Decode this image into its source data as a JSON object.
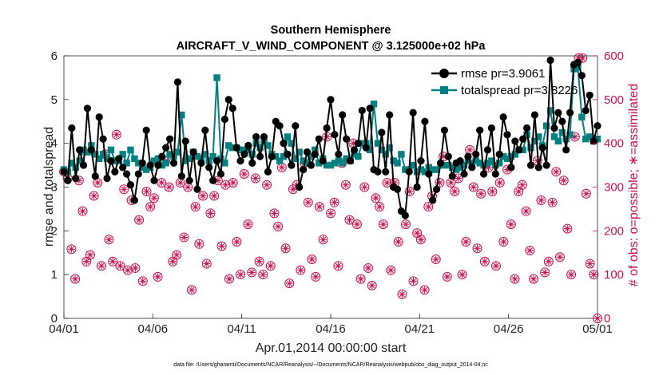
{
  "chart_data": {
    "type": "line",
    "title": "Southern Hemisphere",
    "subtitle": "AIRCRAFT_V_WIND_COMPONENT @ 3.125000e+02 hPa",
    "xlabel": "Apr.01,2014 00:00:00 start",
    "ylabel": "rmse and totalspread",
    "y2label": "# of obs: o=possible; ∗=assimilated",
    "footnote": "data file: /Users/gharamti/Documents/NCAR/Reanalysis/~/Documents/NCAR/Reanalysis/webpub/obs_diag_output_2014-04.nc",
    "x_ticks": [
      "04/01",
      "04/06",
      "04/11",
      "04/16",
      "04/21",
      "04/26",
      "05/01"
    ],
    "y_ticks": [
      "0",
      "1",
      "2",
      "3",
      "4",
      "5",
      "6"
    ],
    "y2_ticks": [
      "0",
      "100",
      "200",
      "300",
      "400",
      "500",
      "600"
    ],
    "ylim": [
      0,
      6
    ],
    "y2lim": [
      0,
      600
    ],
    "xlim_days": [
      0,
      30
    ],
    "legend_position": "top-right",
    "colors": {
      "rmse": "#000000",
      "totalspread": "#008080",
      "obs": "#c8104f"
    },
    "series": [
      {
        "name": "rmse pr=3.9061",
        "axis": "left",
        "values": [
          3.35,
          3.15,
          4.35,
          3.2,
          3.85,
          3.5,
          4.8,
          3.85,
          3.25,
          4.6,
          4.1,
          3.2,
          3.6,
          3.35,
          3.65,
          3.45,
          3.3,
          3.05,
          2.7,
          3.3,
          3.55,
          4.3,
          3.5,
          3.15,
          3.5,
          3.7,
          3.9,
          4.1,
          3.55,
          5.4,
          3.25,
          4.05,
          3.15,
          3.8,
          2.95,
          3.55,
          4.3,
          3.45,
          3.15,
          3.6,
          3.3,
          4.55,
          5.0,
          4.8,
          3.9,
          3.6,
          3.75,
          3.95,
          3.55,
          4.15,
          3.7,
          4.15,
          3.35,
          3.7,
          4.5,
          4.4,
          4.0,
          3.75,
          3.5,
          4.4,
          3.0,
          3.4,
          3.8,
          3.5,
          3.75,
          4.1,
          3.6,
          4.35,
          5.0,
          4.2,
          3.75,
          4.65,
          4.1,
          3.6,
          3.85,
          4.0,
          4.75,
          3.9,
          4.8,
          3.4,
          3.35,
          4.25,
          3.35,
          4.65,
          3.0,
          2.95,
          2.45,
          2.35,
          3.35,
          4.7,
          3.0,
          3.6,
          4.5,
          3.3,
          2.7,
          2.95,
          3.55,
          4.3,
          3.7,
          3.25,
          3.55,
          3.6,
          3.3,
          3.7,
          3.45,
          3.75,
          4.3,
          3.3,
          3.85,
          4.35,
          3.3,
          3.75,
          4.6,
          4.2,
          3.45,
          4.05,
          3.85,
          4.1,
          4.35,
          3.5,
          4.65,
          3.45,
          3.9,
          3.5,
          5.9,
          4.35,
          4.7,
          4.5,
          3.85,
          4.7,
          5.8,
          5.85,
          5.55,
          4.75,
          5.1,
          4.05,
          4.4
        ]
      },
      {
        "name": "totalspread pr=3.8226",
        "axis": "left",
        "values": [
          3.4,
          3.35,
          3.55,
          3.45,
          3.6,
          3.85,
          3.8,
          3.95,
          3.75,
          3.65,
          3.75,
          3.65,
          3.85,
          3.6,
          3.6,
          3.75,
          3.55,
          3.85,
          3.65,
          3.55,
          3.45,
          3.4,
          3.45,
          3.6,
          3.65,
          3.5,
          3.55,
          3.75,
          3.7,
          3.8,
          4.65,
          3.6,
          3.65,
          3.8,
          3.7,
          3.65,
          3.75,
          3.6,
          3.7,
          5.5,
          3.65,
          3.55,
          3.95,
          3.9,
          3.9,
          3.85,
          3.85,
          3.85,
          3.75,
          4.0,
          3.9,
          4.05,
          3.95,
          3.75,
          3.7,
          3.6,
          3.7,
          4.15,
          4.0,
          3.65,
          3.8,
          3.6,
          3.55,
          3.7,
          3.85,
          3.55,
          3.65,
          3.5,
          3.5,
          3.55,
          3.6,
          3.55,
          3.65,
          3.6,
          3.75,
          3.7,
          4.0,
          4.0,
          3.85,
          4.9,
          4.0,
          3.85,
          3.75,
          3.9,
          3.6,
          3.55,
          3.75,
          3.4,
          3.4,
          3.5,
          3.35,
          3.4,
          3.35,
          3.45,
          3.4,
          3.4,
          3.5,
          3.5,
          3.5,
          3.45,
          3.4,
          3.45,
          3.5,
          3.6,
          3.55,
          3.6,
          3.55,
          3.5,
          3.55,
          3.6,
          3.5,
          3.55,
          3.7,
          3.65,
          3.7,
          3.75,
          3.85,
          3.85,
          4.2,
          3.9,
          4.05,
          4.15,
          3.95,
          4.4,
          4.75,
          4.15,
          4.05,
          4.25,
          4.1,
          4.2,
          5.7,
          5.75,
          4.6,
          4.1,
          4.15,
          4.05,
          4.1
        ]
      },
      {
        "name": "obs possible",
        "axis": "right",
        "marker": "o",
        "values": [
          335,
          320,
          158,
          90,
          315,
          245,
          130,
          145,
          280,
          310,
          120,
          375,
          180,
          130,
          420,
          120,
          295,
          110,
          270,
          115,
          225,
          85,
          290,
          255,
          275,
          95,
          310,
          360,
          300,
          130,
          145,
          310,
          185,
          300,
          65,
          255,
          170,
          280,
          125,
          240,
          280,
          315,
          165,
          305,
          90,
          310,
          175,
          100,
          330,
          215,
          105,
          320,
          130,
          100,
          305,
          120,
          240,
          210,
          345,
          160,
          80,
          295,
          305,
          110,
          355,
          265,
          135,
          95,
          255,
          180,
          415,
          240,
          265,
          120,
          355,
          305,
          225,
          400,
          215,
          90,
          300,
          115,
          75,
          275,
          255,
          215,
          310,
          110,
          310,
          175,
          55,
          215,
          290,
          85,
          195,
          180,
          65,
          255,
          280,
          135,
          310,
          370,
          95,
          310,
          290,
          320,
          100,
          175,
          385,
          300,
          160,
          285,
          130,
          345,
          290,
          120,
          310,
          175,
          340,
          215,
          90,
          290,
          305,
          245,
          155,
          90,
          360,
          270,
          105,
          130,
          265,
          335,
          140,
          315,
          205,
          100,
          415,
          595,
          595,
          285,
          125,
          100,
          0
        ]
      },
      {
        "name": "obs assimilated",
        "axis": "right",
        "marker": "*",
        "values": [
          335,
          320,
          158,
          90,
          315,
          245,
          130,
          145,
          280,
          310,
          120,
          375,
          180,
          130,
          420,
          120,
          295,
          110,
          270,
          115,
          225,
          85,
          290,
          255,
          275,
          95,
          310,
          360,
          300,
          130,
          145,
          310,
          185,
          300,
          65,
          255,
          170,
          280,
          125,
          240,
          280,
          315,
          165,
          305,
          90,
          310,
          175,
          100,
          330,
          215,
          105,
          320,
          130,
          100,
          305,
          120,
          240,
          210,
          345,
          160,
          80,
          295,
          305,
          110,
          355,
          265,
          135,
          95,
          255,
          180,
          415,
          240,
          265,
          120,
          355,
          305,
          225,
          400,
          215,
          90,
          300,
          115,
          75,
          275,
          255,
          215,
          310,
          110,
          310,
          175,
          55,
          215,
          290,
          85,
          195,
          180,
          65,
          255,
          280,
          135,
          310,
          370,
          95,
          310,
          290,
          320,
          100,
          175,
          385,
          300,
          160,
          285,
          130,
          345,
          290,
          120,
          310,
          175,
          340,
          215,
          90,
          290,
          305,
          245,
          155,
          90,
          360,
          270,
          105,
          130,
          265,
          335,
          140,
          315,
          205,
          100,
          415,
          595,
          595,
          285,
          125,
          100,
          0
        ]
      }
    ]
  }
}
